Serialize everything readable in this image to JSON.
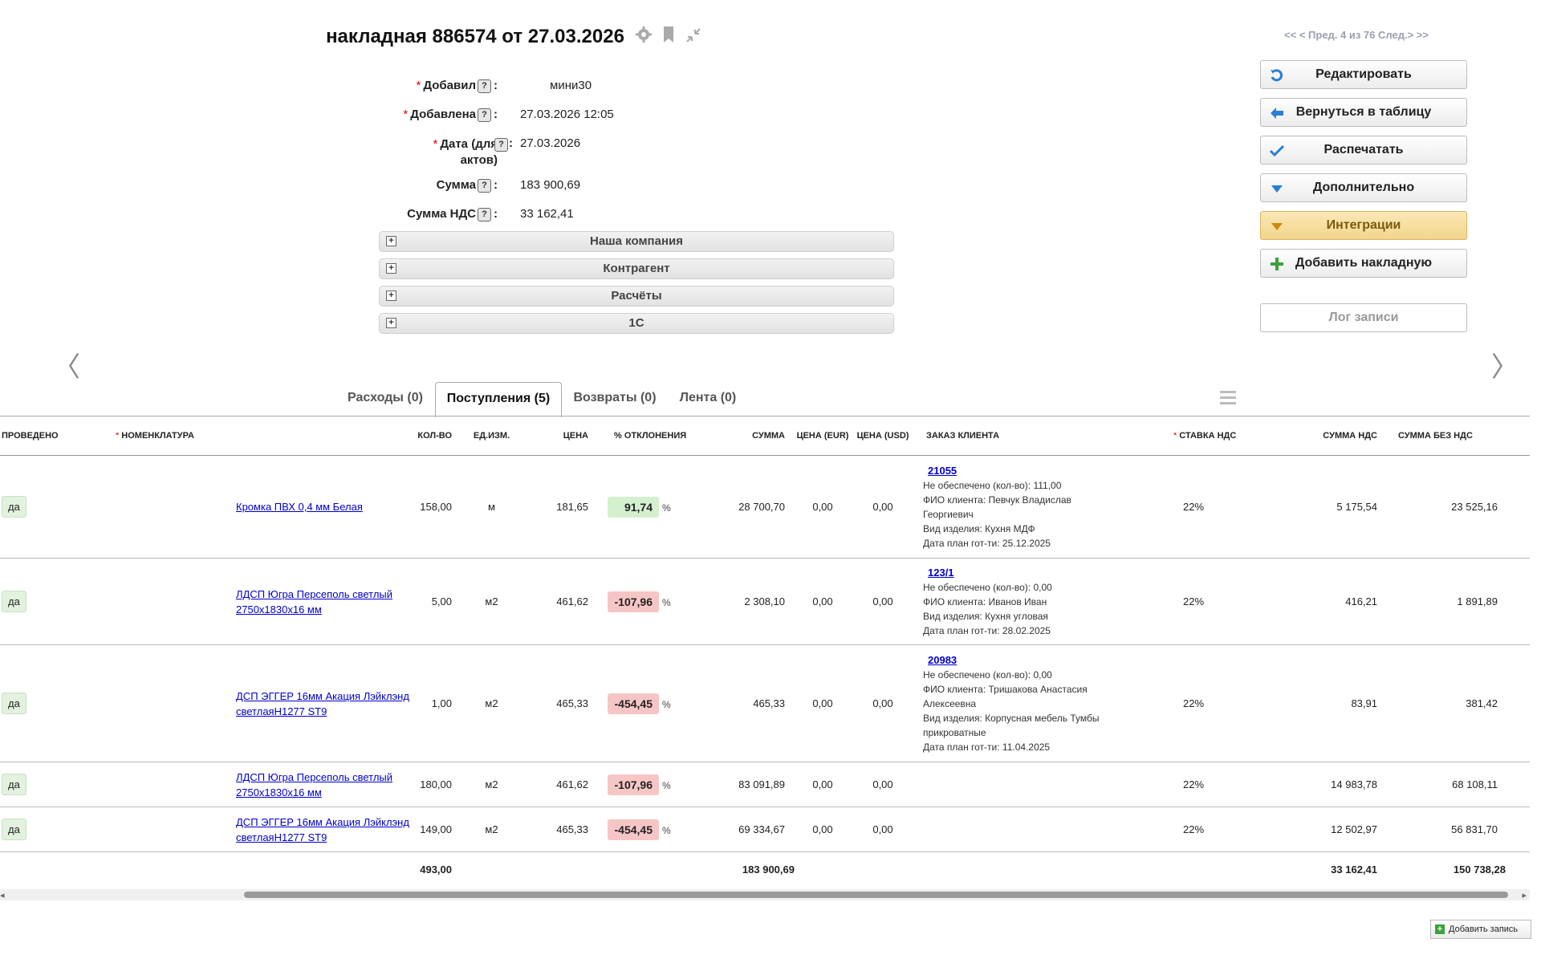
{
  "header": {
    "title": "накладная 886574 от 27.03.2026",
    "pager": "<< < Пред. 4 из 76 След.> >>"
  },
  "form": {
    "added_by": {
      "label": "Добавил",
      "value": "мини30"
    },
    "added_at": {
      "label": "Добавлена",
      "value": "27.03.2026 12:05"
    },
    "date": {
      "label": "Дата (для актов)",
      "value": "27.03.2026"
    },
    "sum": {
      "label": "Сумма",
      "value": "183 900,69"
    },
    "vat_sum": {
      "label": "Сумма НДС",
      "value": "33 162,41"
    }
  },
  "sections": [
    "Наша компания",
    "Контрагент",
    "Расчёты",
    "1С"
  ],
  "buttons": {
    "edit": "Редактировать",
    "back": "Вернуться в таблицу",
    "print": "Распечатать",
    "more": "Дополнительно",
    "integrations": "Интеграции",
    "add_invoice": "Добавить накладную",
    "log": "Лог записи"
  },
  "tabs": [
    {
      "label": "Расходы (0)"
    },
    {
      "label": "Поступления (5)"
    },
    {
      "label": "Возвраты (0)"
    },
    {
      "label": "Лента (0)"
    }
  ],
  "table": {
    "headers": {
      "posted": "ПРОВЕДЕНО",
      "nomenclature": "НОМЕНКЛАТУРА",
      "qty": "КОЛ-ВО",
      "unit": "ЕД.ИЗМ.",
      "price": "ЦЕНА",
      "deviation": "% ОТКЛОНЕНИЯ",
      "sum": "СУММА",
      "price_eur": "ЦЕНА (EUR)",
      "price_usd": "ЦЕНА (USD)",
      "order": "ЗАКАЗ КЛИЕНТА",
      "vat_rate": "СТАВКА НДС",
      "vat_sum": "СУММА НДС",
      "sum_no_vat": "СУММА БЕЗ НДС"
    },
    "rows": [
      {
        "posted": "да",
        "name": "Кромка ПВХ 0,4 мм Белая",
        "qty": "158,00",
        "unit": "м",
        "price": "181,65",
        "dev": "91,74",
        "dev_pct": "%",
        "sum": "28 700,70",
        "eur": "0,00",
        "usd": "0,00",
        "order_no": "21055",
        "order_l1": "Не обеспечено (кол-во): 111,00",
        "order_l2": "ФИО клиента: Певчук Владислав Георгиевич",
        "order_l3": "Вид изделия: Кухня МДФ",
        "order_l4": "Дата план гот-ти: 25.12.2025",
        "vat_rate": "22%",
        "vat_sum": "5 175,54",
        "no_vat": "23 525,16"
      },
      {
        "posted": "да",
        "name": "ЛДСП Югра Персеполь светлый 2750х1830х16 мм",
        "qty": "5,00",
        "unit": "м2",
        "price": "461,62",
        "dev": "-107,96",
        "dev_pct": "%",
        "sum": "2 308,10",
        "eur": "0,00",
        "usd": "0,00",
        "order_no": "123/1",
        "order_l1": "Не обеспечено (кол-во): 0,00",
        "order_l2": "ФИО клиента: Иванов Иван",
        "order_l3": "Вид изделия: Кухня угловая",
        "order_l4": "Дата план гот-ти: 28.02.2025",
        "vat_rate": "22%",
        "vat_sum": "416,21",
        "no_vat": "1 891,89"
      },
      {
        "posted": "да",
        "name": "ДСП ЭГГЕР 16мм Акация Лэйклэнд светлаяН1277 ST9",
        "qty": "1,00",
        "unit": "м2",
        "price": "465,33",
        "dev": "-454,45",
        "dev_pct": "%",
        "sum": "465,33",
        "eur": "0,00",
        "usd": "0,00",
        "order_no": "20983",
        "order_l1": "Не обеспечено (кол-во): 0,00",
        "order_l2": "ФИО клиента: Тришакова Анастасия Алексеевна",
        "order_l3": "Вид изделия: Корпусная мебель Тумбы прикроватные",
        "order_l4": "Дата план гот-ти: 11.04.2025",
        "vat_rate": "22%",
        "vat_sum": "83,91",
        "no_vat": "381,42"
      },
      {
        "posted": "да",
        "name": "ЛДСП Югра Персеполь светлый 2750х1830х16 мм",
        "qty": "180,00",
        "unit": "м2",
        "price": "461,62",
        "dev": "-107,96",
        "dev_pct": "%",
        "sum": "83 091,89",
        "eur": "0,00",
        "usd": "0,00",
        "order_no": "",
        "order_l1": "",
        "order_l2": "",
        "order_l3": "",
        "order_l4": "",
        "vat_rate": "22%",
        "vat_sum": "14 983,78",
        "no_vat": "68 108,11"
      },
      {
        "posted": "да",
        "name": "ДСП ЭГГЕР 16мм Акация Лэйклэнд светлаяН1277 ST9",
        "qty": "149,00",
        "unit": "м2",
        "price": "465,33",
        "dev": "-454,45",
        "dev_pct": "%",
        "sum": "69 334,67",
        "eur": "0,00",
        "usd": "0,00",
        "order_no": "",
        "order_l1": "",
        "order_l2": "",
        "order_l3": "",
        "order_l4": "",
        "vat_rate": "22%",
        "vat_sum": "12 502,97",
        "no_vat": "56 831,70"
      }
    ],
    "totals": {
      "qty": "493,00",
      "sum": "183 900,69",
      "vat_sum": "33 162,41",
      "no_vat": "150 738,28"
    }
  },
  "footer": {
    "add_record": "Добавить запись"
  },
  "colors": {
    "accent": "#f3d58c",
    "positive": "#d5f0cf",
    "negative": "#f6c6c6",
    "link": "#0000cc"
  }
}
